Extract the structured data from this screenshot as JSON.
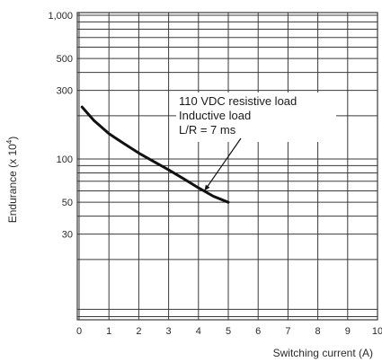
{
  "chart_data": {
    "type": "line",
    "y_scale": "log",
    "grid": true,
    "xlim": [
      0,
      10
    ],
    "ylim": [
      10,
      1000
    ],
    "x_ticks": [
      "0",
      "1",
      "2",
      "3",
      "4",
      "5",
      "6",
      "7",
      "8",
      "9",
      "10"
    ],
    "y_ticks": [
      {
        "value": 1000,
        "label": "1,000"
      },
      {
        "value": 500,
        "label": "500"
      },
      {
        "value": 300,
        "label": "300"
      },
      {
        "value": 100,
        "label": "100"
      },
      {
        "value": 50,
        "label": "50"
      },
      {
        "value": 30,
        "label": "30"
      }
    ],
    "xlabel": "Switching current (A)",
    "ylabel": "Endurance (x 10",
    "ylabel_exp": "4",
    "ylabel_suffix": ")",
    "series": [
      {
        "x": [
          0.1,
          0.5,
          1,
          1.5,
          2,
          2.5,
          3,
          3.5,
          4,
          4.5,
          5
        ],
        "y": [
          230,
          185,
          150,
          128,
          110,
          96,
          84,
          73,
          63,
          55,
          50
        ]
      }
    ],
    "annotation": {
      "lines": [
        "110 VDC resistive load",
        "Inductive load",
        "L/R = 7 ms"
      ],
      "points_to": {
        "x": 4.2,
        "y": 60
      }
    },
    "colors": {
      "line": "#111111",
      "grid": "#3a3a3a"
    }
  }
}
